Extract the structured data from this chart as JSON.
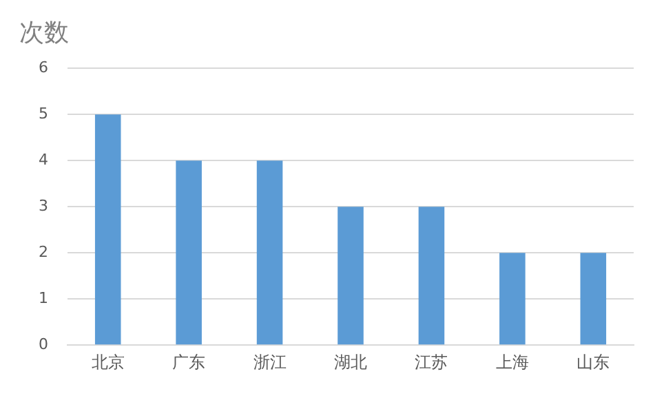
{
  "chart_data": {
    "type": "bar",
    "title": "次数",
    "categories": [
      "北京",
      "广东",
      "浙江",
      "湖北",
      "江苏",
      "上海",
      "山东"
    ],
    "values": [
      5,
      4,
      4,
      3,
      3,
      2,
      2
    ],
    "color": "#5b9bd5",
    "ylim": [
      0,
      6
    ],
    "yticks": [
      0,
      1,
      2,
      3,
      4,
      5,
      6
    ],
    "grid": "y"
  }
}
